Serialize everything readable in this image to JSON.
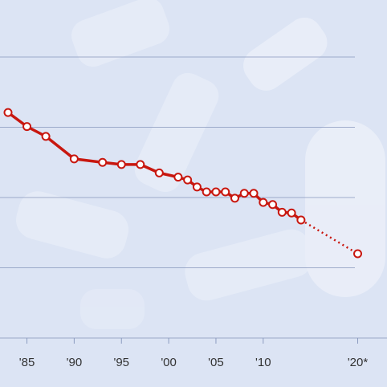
{
  "chart_data": {
    "type": "line",
    "x": [
      1983,
      1985,
      1987,
      1990,
      1993,
      1995,
      1997,
      1999,
      2001,
      2002,
      2003,
      2004,
      2005,
      2006,
      2007,
      2008,
      2009,
      2010,
      2011,
      2012,
      2013,
      2014,
      2020
    ],
    "series": [
      {
        "color": "#c8170f",
        "values": [
          3.21,
          3.01,
          2.87,
          2.55,
          2.5,
          2.47,
          2.47,
          2.35,
          2.29,
          2.25,
          2.15,
          2.08,
          2.08,
          2.08,
          1.99,
          2.06,
          2.06,
          1.93,
          1.9,
          1.79,
          1.78,
          1.68,
          1.2
        ]
      }
    ],
    "xlim": [
      1982.15,
      2023.1
    ],
    "xticks": [
      {
        "value": 1985,
        "label": "'85"
      },
      {
        "value": 1990,
        "label": "'90"
      },
      {
        "value": 1995,
        "label": "'95"
      },
      {
        "value": 2000,
        "label": "'00"
      },
      {
        "value": 2005,
        "label": "'05"
      },
      {
        "value": 2010,
        "label": "'10"
      },
      {
        "value": 2020,
        "label": "'20*"
      }
    ],
    "ylim": [
      0,
      4.8
    ],
    "yticks": [
      1,
      2,
      3,
      4
    ],
    "grid": true,
    "dashed_last_segment": true
  }
}
